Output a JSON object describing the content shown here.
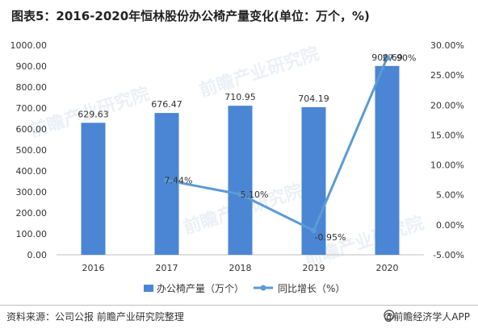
{
  "title": "图表5：2016-2020年恒林股份办公椅产量变化(单位：万个，%)",
  "source_label": "资料来源：公司公报 前瞻产业研究院整理",
  "brand": "@前瞻经济学人APP",
  "watermark": "前瞻产业研究院",
  "colors": {
    "bar": "#4a86d4",
    "line": "#5b9bd5"
  },
  "chart_data": {
    "type": "bar",
    "categories": [
      "2016",
      "2017",
      "2018",
      "2019",
      "2020"
    ],
    "series": [
      {
        "name": "办公椅产量（万个）",
        "type": "bar",
        "axis": "left",
        "values": [
          629.63,
          676.47,
          710.95,
          704.19,
          900.69
        ],
        "labels": [
          "629.63",
          "676.47",
          "710.95",
          "704.19",
          "900.69"
        ]
      },
      {
        "name": "同比增长（%）",
        "type": "line",
        "axis": "right",
        "x": [
          "2017",
          "2018",
          "2019",
          "2020"
        ],
        "values": [
          7.44,
          5.1,
          -0.95,
          27.9
        ],
        "labels": [
          "7.44%",
          "5.10%",
          "-0.95%",
          "27.90%"
        ]
      }
    ],
    "y_left": {
      "min": 0,
      "max": 1000,
      "step": 100,
      "ticks": [
        "0.00",
        "100.00",
        "200.00",
        "300.00",
        "400.00",
        "500.00",
        "600.00",
        "700.00",
        "800.00",
        "900.00",
        "1000.00"
      ]
    },
    "y_right": {
      "min": -5,
      "max": 30,
      "step": 5,
      "ticks": [
        "-5.00%",
        "0.00%",
        "5.00%",
        "10.00%",
        "15.00%",
        "20.00%",
        "25.00%",
        "30.00%"
      ]
    },
    "grid": false,
    "legend_position": "bottom"
  }
}
